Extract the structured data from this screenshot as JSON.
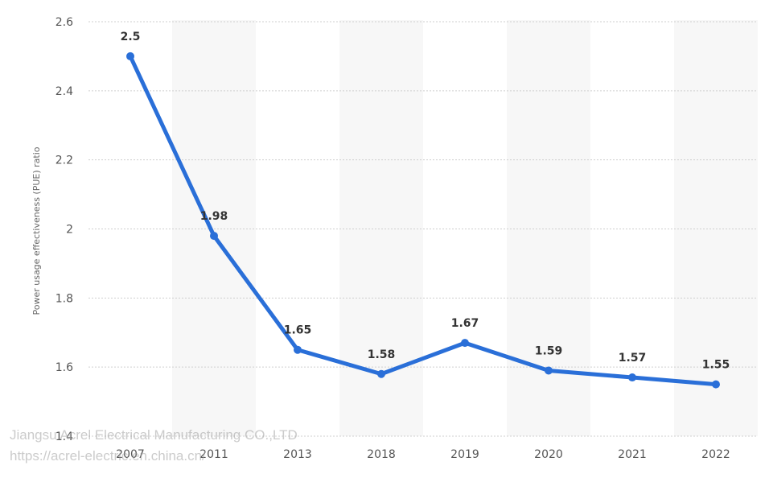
{
  "chart_data": {
    "type": "line",
    "categories": [
      "2007",
      "2011",
      "2013",
      "2018",
      "2019",
      "2020",
      "2021",
      "2022"
    ],
    "values": [
      2.5,
      1.98,
      1.65,
      1.58,
      1.67,
      1.59,
      1.57,
      1.55
    ],
    "data_labels": [
      "2.5",
      "1.98",
      "1.65",
      "1.58",
      "1.67",
      "1.59",
      "1.57",
      "1.55"
    ],
    "ylabel": "Power usage effectiveness (PUE) ratio",
    "xlabel": "",
    "ylim": [
      1.4,
      2.6
    ],
    "yticks": [
      "1.4",
      "1.6",
      "1.8",
      "2",
      "2.2",
      "2.4",
      "2.6"
    ],
    "grid": "horizontal dashed",
    "alternating_column_shading": true,
    "line_color": "#2a6fd8"
  },
  "watermark": {
    "line1": "Jiangsu Acrel Electrical Manufacturing CO.,LTD",
    "line2": "https://acrel-electric.en.china.cn/"
  }
}
